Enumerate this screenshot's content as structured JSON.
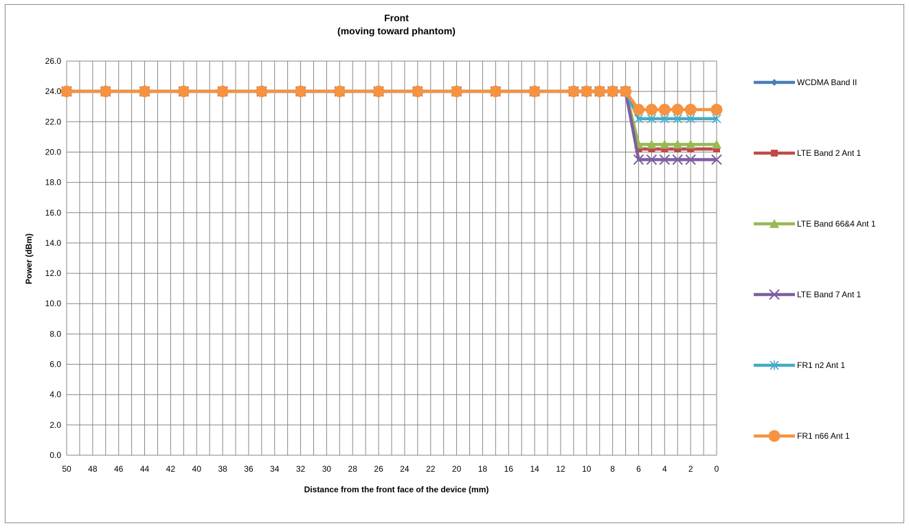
{
  "chart_data": {
    "type": "line",
    "title": "Front",
    "subtitle": "(moving toward phantom)",
    "xlabel": "Distance from the front face of the device (mm)",
    "ylabel": "Power (dBm)",
    "ylim": [
      0,
      26
    ],
    "y_ticks": [
      "0.0",
      "2.0",
      "4.0",
      "6.0",
      "8.0",
      "10.0",
      "12.0",
      "14.0",
      "16.0",
      "18.0",
      "20.0",
      "22.0",
      "24.0",
      "26.0"
    ],
    "x_ticks": [
      "50",
      "48",
      "46",
      "44",
      "42",
      "40",
      "38",
      "36",
      "34",
      "32",
      "30",
      "28",
      "26",
      "24",
      "22",
      "20",
      "18",
      "16",
      "14",
      "12",
      "10",
      "8",
      "6",
      "4",
      "2",
      "0"
    ],
    "x_reversed": true,
    "xlim": [
      0,
      50
    ],
    "grid": true,
    "legend_position": "right",
    "x": [
      50,
      47,
      44,
      41,
      38,
      35,
      32,
      29,
      26,
      23,
      20,
      17,
      14,
      11,
      10,
      9,
      8,
      7,
      6,
      5,
      4,
      3,
      2,
      0
    ],
    "series": [
      {
        "name": "WCDMA Band II",
        "color": "#4a7ebb",
        "marker": "diamond",
        "values": [
          24,
          24,
          24,
          24,
          24,
          24,
          24,
          24,
          24,
          24,
          24,
          24,
          24,
          24,
          24,
          24,
          24,
          24,
          20.2,
          20.2,
          20.2,
          20.2,
          20.2,
          20.2
        ]
      },
      {
        "name": "LTE Band 2 Ant 1",
        "color": "#be4b48",
        "marker": "square",
        "values": [
          24,
          24,
          24,
          24,
          24,
          24,
          24,
          24,
          24,
          24,
          24,
          24,
          24,
          24,
          24,
          24,
          24,
          24,
          20.2,
          20.2,
          20.2,
          20.2,
          20.2,
          20.2
        ]
      },
      {
        "name": "LTE Band 66&4 Ant 1",
        "color": "#98b954",
        "marker": "triangle",
        "values": [
          24,
          24,
          24,
          24,
          24,
          24,
          24,
          24,
          24,
          24,
          24,
          24,
          24,
          24,
          24,
          24,
          24,
          24,
          20.5,
          20.5,
          20.5,
          20.5,
          20.5,
          20.5
        ]
      },
      {
        "name": "LTE Band 7 Ant 1",
        "color": "#7d60a0",
        "marker": "x",
        "values": [
          24,
          24,
          24,
          24,
          24,
          24,
          24,
          24,
          24,
          24,
          24,
          24,
          24,
          24,
          24,
          24,
          24,
          24,
          19.5,
          19.5,
          19.5,
          19.5,
          19.5,
          19.5
        ]
      },
      {
        "name": "FR1 n2 Ant 1",
        "color": "#46aac5",
        "marker": "star",
        "values": [
          24,
          24,
          24,
          24,
          24,
          24,
          24,
          24,
          24,
          24,
          24,
          24,
          24,
          24,
          24,
          24,
          24,
          24,
          22.2,
          22.2,
          22.2,
          22.2,
          22.2,
          22.2
        ]
      },
      {
        "name": "FR1 n66 Ant 1",
        "color": "#f69240",
        "marker": "circle",
        "values": [
          24,
          24,
          24,
          24,
          24,
          24,
          24,
          24,
          24,
          24,
          24,
          24,
          24,
          24,
          24,
          24,
          24,
          24,
          22.8,
          22.8,
          22.8,
          22.8,
          22.8,
          22.8
        ]
      }
    ]
  }
}
